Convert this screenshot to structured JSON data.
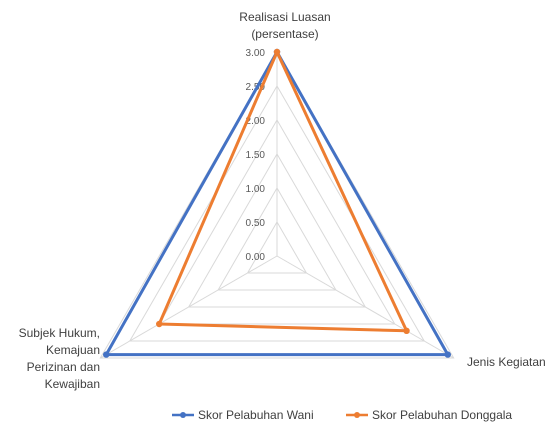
{
  "chart_data": {
    "type": "radar",
    "axes": [
      {
        "label_lines": [
          "Realisasi Luasan",
          "(persentase)"
        ]
      },
      {
        "label_lines": [
          "Jenis Kegiatan"
        ]
      },
      {
        "label_lines": [
          "Subjek Hukum,",
          "Kemajuan",
          "Perizinan dan",
          "Kewajiban"
        ]
      }
    ],
    "ticks": [
      "0.00",
      "0.50",
      "1.00",
      "1.50",
      "2.00",
      "2.50",
      "3.00"
    ],
    "rmin": 0,
    "rmax": 3,
    "grid": true,
    "legend_position": "bottom",
    "series": [
      {
        "name": "Skor Pelabuhan Wani",
        "values": [
          3.0,
          2.9,
          2.9
        ],
        "color": "#4472C4"
      },
      {
        "name": "Skor Pelabuhan Donggala",
        "values": [
          3.0,
          2.2,
          2.0
        ],
        "color": "#ED7D31"
      }
    ]
  }
}
